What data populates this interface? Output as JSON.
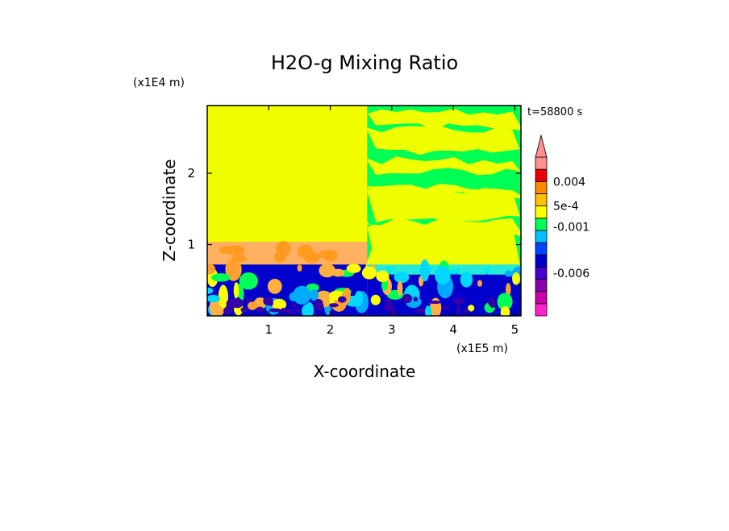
{
  "chart_data": {
    "type": "heatmap",
    "title": "H2O-g Mixing Ratio",
    "xlabel": "X-coordinate",
    "ylabel": "Z-coordinate",
    "x_unit": "(x1E5 m)",
    "y_unit": "(x1E4 m)",
    "time_label": "t=58800 s",
    "xlim": [
      0,
      5.1
    ],
    "ylim": [
      0,
      2.95
    ],
    "x_ticks": [
      1,
      2,
      3,
      4,
      5
    ],
    "x_tick_labels": [
      "1",
      "2",
      "3",
      "4",
      "5"
    ],
    "y_ticks": [
      1,
      2
    ],
    "y_tick_labels": [
      "1",
      "2"
    ],
    "grid": false,
    "colorbar": {
      "colors": [
        "#ff22cc",
        "#cc00aa",
        "#8800aa",
        "#4400cc",
        "#0000cc",
        "#0044ff",
        "#00c0ff",
        "#00ff55",
        "#ffff00",
        "#ffc000",
        "#ff8800",
        "#ee0000",
        "#ff9090"
      ],
      "extend_color": "#ff9090",
      "labels": [
        {
          "text": "0.004",
          "level": 0.004
        },
        {
          "text": "5e-4",
          "level": 0.0005
        },
        {
          "text": "-0.001",
          "level": -0.001
        },
        {
          "text": "-0.006",
          "level": -0.006
        }
      ]
    },
    "regions": [
      {
        "field": "background",
        "value": 5e-05,
        "color": "#f0ff00",
        "x": [
          0,
          5.1
        ],
        "z": [
          0,
          2.95
        ]
      },
      {
        "field": "moist_layer_left",
        "value": 0.0002,
        "color": "#ffb060",
        "x": [
          0,
          2.6
        ],
        "z": [
          0.72,
          1.04
        ]
      },
      {
        "field": "boundary_layer_left",
        "value": -0.0015,
        "color": "#0000cc",
        "x": [
          0,
          2.6
        ],
        "z": [
          0,
          0.72
        ]
      },
      {
        "field": "boundary_layer_right",
        "value": -0.0015,
        "color": "#0000cc",
        "x": [
          2.6,
          5.1
        ],
        "z": [
          0,
          0.6
        ]
      },
      {
        "field": "dry_cap_right",
        "value": -0.0008,
        "color": "#00ff55",
        "x": [
          2.6,
          5.1
        ],
        "z": [
          0.6,
          2.95
        ]
      }
    ]
  }
}
